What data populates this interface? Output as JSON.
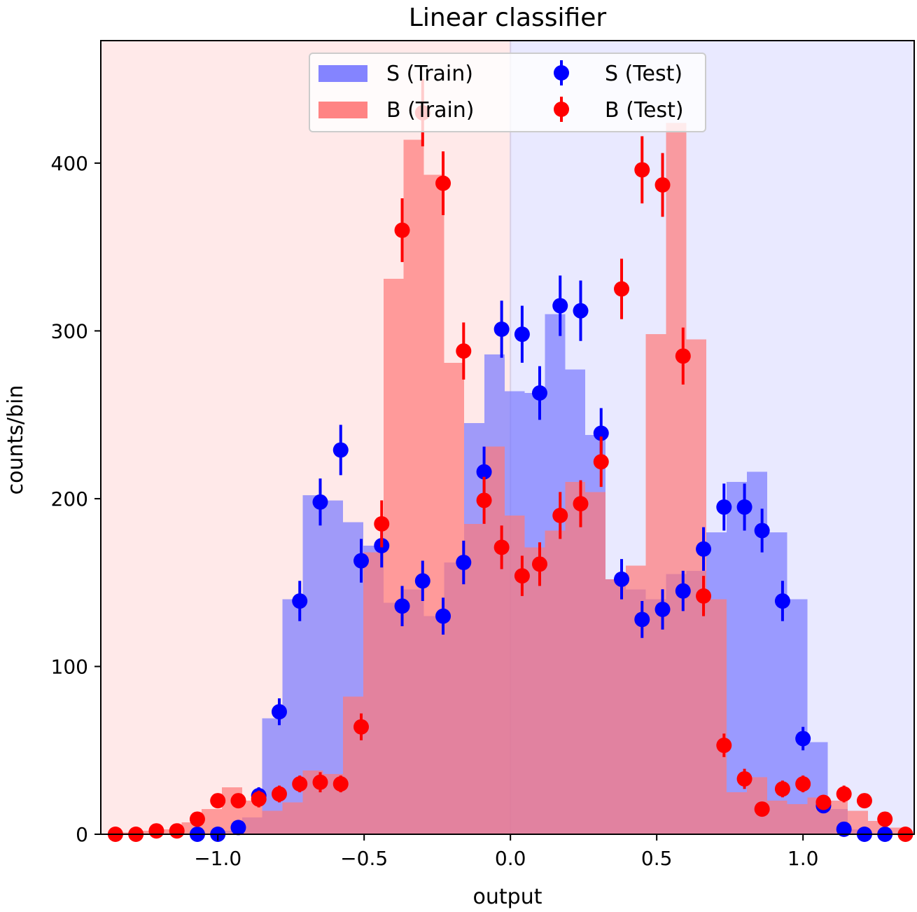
{
  "chart_data": {
    "type": "histogram",
    "title": "Linear classifier",
    "xlabel": "output",
    "ylabel": "counts/bin",
    "xlim": [
      -1.4,
      1.38
    ],
    "ylim": [
      0,
      473
    ],
    "x_ticks": [
      -1.0,
      -0.5,
      0.0,
      0.5,
      1.0
    ],
    "x_tick_labels": [
      "−1.0",
      "−0.5",
      "0.0",
      "0.5",
      "1.0"
    ],
    "y_ticks": [
      0,
      100,
      200,
      300,
      400
    ],
    "y_tick_labels": [
      "0",
      "100",
      "200",
      "300",
      "400"
    ],
    "decision_regions": [
      {
        "name": "background region",
        "x_range": [
          -1.4,
          0.0
        ],
        "color": "#ffe9e9"
      },
      {
        "name": "signal region",
        "x_range": [
          0.0,
          1.38
        ],
        "color": "#e9e9ff"
      }
    ],
    "bin_edges": [
      -1.4,
      -1.331,
      -1.262,
      -1.193,
      -1.124,
      -1.055,
      -0.986,
      -0.917,
      -0.848,
      -0.779,
      -0.71,
      -0.641,
      -0.572,
      -0.503,
      -0.434,
      -0.365,
      -0.296,
      -0.227,
      -0.158,
      -0.089,
      -0.02,
      0.049,
      0.118,
      0.187,
      0.256,
      0.325,
      0.394,
      0.463,
      0.532,
      0.601,
      0.67,
      0.739,
      0.808,
      0.877,
      0.946,
      1.015,
      1.084,
      1.153,
      1.222,
      1.291,
      1.36
    ],
    "series": [
      {
        "name": "S (Train)",
        "kind": "histogram",
        "color": "#7777ff",
        "values": [
          0,
          0,
          0,
          0,
          0,
          0,
          2,
          10,
          69,
          140,
          202,
          199,
          186,
          172,
          138,
          146,
          130,
          162,
          245,
          286,
          264,
          263,
          310,
          277,
          238,
          152,
          146,
          140,
          155,
          157,
          180,
          210,
          216,
          180,
          140,
          55,
          15,
          3,
          0,
          0
        ]
      },
      {
        "name": "B (Train)",
        "kind": "histogram",
        "color": "#ff7777",
        "values": [
          0,
          1,
          2,
          3,
          7,
          15,
          28,
          20,
          14,
          19,
          38,
          36,
          82,
          168,
          331,
          414,
          393,
          281,
          185,
          231,
          190,
          171,
          181,
          210,
          204,
          152,
          160,
          298,
          424,
          295,
          140,
          25,
          34,
          20,
          18,
          22,
          20,
          14,
          8,
          4
        ]
      },
      {
        "name": "S (Test)",
        "kind": "errorbar",
        "color": "#0000ff",
        "x": [
          -1.07,
          -1.0,
          -0.93,
          -0.86,
          -0.79,
          -0.72,
          -0.65,
          -0.58,
          -0.51,
          -0.44,
          -0.37,
          -0.3,
          -0.23,
          -0.16,
          -0.09,
          -0.03,
          0.04,
          0.1,
          0.17,
          0.24,
          0.31,
          0.38,
          0.45,
          0.52,
          0.59,
          0.66,
          0.73,
          0.8,
          0.86,
          0.93,
          1.0,
          1.07,
          1.14,
          1.21,
          1.28
        ],
        "y": [
          0,
          0,
          4,
          23,
          73,
          139,
          198,
          229,
          163,
          172,
          136,
          151,
          130,
          162,
          216,
          301,
          298,
          263,
          315,
          312,
          239,
          152,
          128,
          134,
          145,
          170,
          195,
          195,
          181,
          139,
          57,
          17,
          3,
          0,
          0
        ],
        "yerr": [
          0,
          0,
          2,
          5,
          8,
          12,
          14,
          15,
          13,
          13,
          12,
          12,
          11,
          13,
          15,
          17,
          17,
          16,
          18,
          18,
          15,
          12,
          11,
          12,
          12,
          13,
          14,
          14,
          13,
          12,
          7,
          4,
          2,
          0,
          0
        ]
      },
      {
        "name": "B (Test)",
        "kind": "errorbar",
        "color": "#ff0000",
        "x": [
          -1.35,
          -1.28,
          -1.21,
          -1.14,
          -1.07,
          -1.0,
          -0.93,
          -0.86,
          -0.79,
          -0.72,
          -0.65,
          -0.58,
          -0.51,
          -0.44,
          -0.37,
          -0.3,
          -0.23,
          -0.16,
          -0.09,
          -0.03,
          0.04,
          0.1,
          0.17,
          0.24,
          0.31,
          0.38,
          0.45,
          0.52,
          0.59,
          0.66,
          0.73,
          0.8,
          0.86,
          0.93,
          1.0,
          1.07,
          1.14,
          1.21,
          1.28,
          1.35
        ],
        "y": [
          0,
          0,
          2,
          2,
          9,
          20,
          20,
          21,
          24,
          30,
          31,
          30,
          64,
          185,
          360,
          430,
          388,
          288,
          199,
          171,
          154,
          161,
          190,
          197,
          222,
          325,
          396,
          387,
          285,
          142,
          53,
          33,
          15,
          27,
          30,
          19,
          24,
          20,
          9,
          0
        ],
        "yerr": [
          0,
          0,
          1,
          1,
          3,
          4,
          4,
          5,
          5,
          5,
          6,
          5,
          8,
          14,
          19,
          20,
          19,
          17,
          14,
          13,
          12,
          13,
          14,
          14,
          15,
          18,
          20,
          19,
          17,
          12,
          7,
          6,
          4,
          5,
          5,
          4,
          5,
          4,
          3,
          0
        ]
      }
    ],
    "legend": {
      "placement": "top-center",
      "columns": 2,
      "entries": [
        "S (Train)",
        "B (Train)",
        "S (Test)",
        "B (Test)"
      ]
    },
    "grid": false
  }
}
